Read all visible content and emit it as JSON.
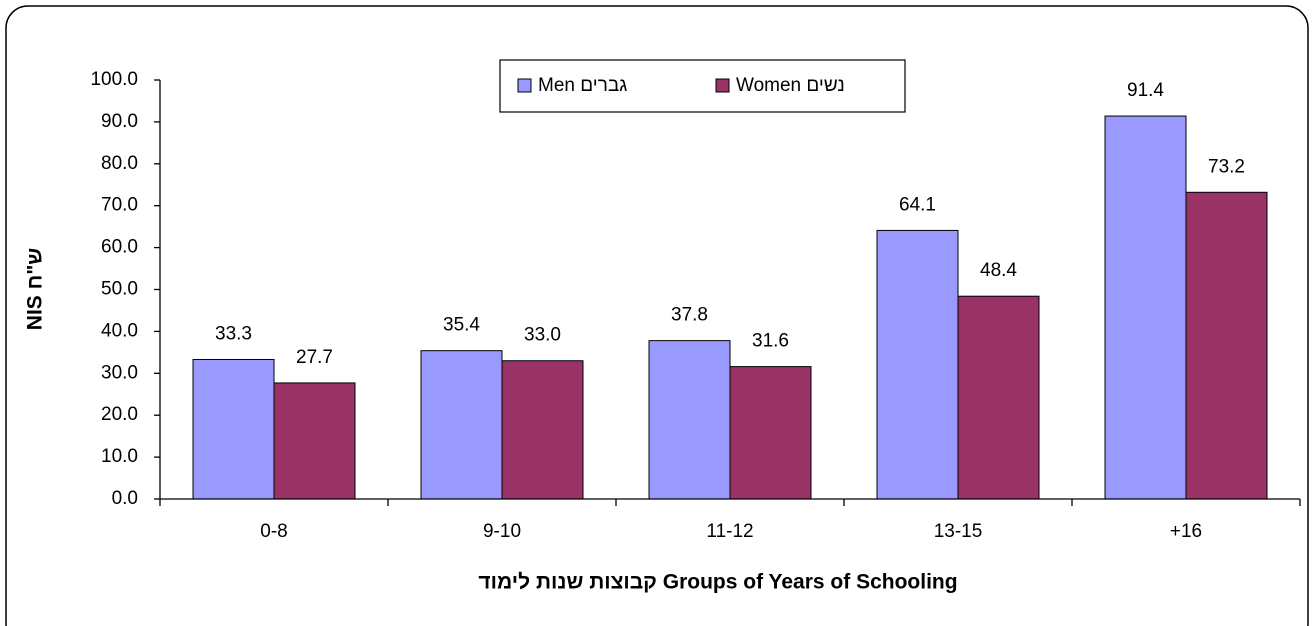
{
  "chart_data": {
    "type": "bar",
    "categories": [
      "0-8",
      "9-10",
      "11-12",
      "13-15",
      "+16"
    ],
    "series": [
      {
        "name": "Men גברים",
        "color": "#9999ff",
        "values": [
          33.3,
          35.4,
          37.8,
          64.1,
          91.4
        ],
        "value_labels": [
          "33.3",
          "35.4",
          "37.8",
          "64.1",
          "91.4"
        ]
      },
      {
        "name": "Women נשים",
        "color": "#993366",
        "values": [
          27.7,
          33.0,
          31.6,
          48.4,
          73.2
        ],
        "value_labels": [
          "27.7",
          "33.0",
          "31.6",
          "48.4",
          "73.2"
        ]
      }
    ],
    "ylabel": "NIS ש\"ח",
    "xlabel": "קבוצות שנות לימוד Groups of Years of Schooling",
    "ylim": [
      0,
      100
    ],
    "yticks": [
      {
        "value": 0,
        "label": "0.0"
      },
      {
        "value": 10,
        "label": "10.0"
      },
      {
        "value": 20,
        "label": "20.0"
      },
      {
        "value": 30,
        "label": "30.0"
      },
      {
        "value": 40,
        "label": "40.0"
      },
      {
        "value": 50,
        "label": "50.0"
      },
      {
        "value": 60,
        "label": "60.0"
      },
      {
        "value": 70,
        "label": "70.0"
      },
      {
        "value": 80,
        "label": "80.0"
      },
      {
        "value": 90,
        "label": "90.0"
      },
      {
        "value": 100,
        "label": "100.0"
      }
    ],
    "grid": false,
    "legend": "top"
  }
}
